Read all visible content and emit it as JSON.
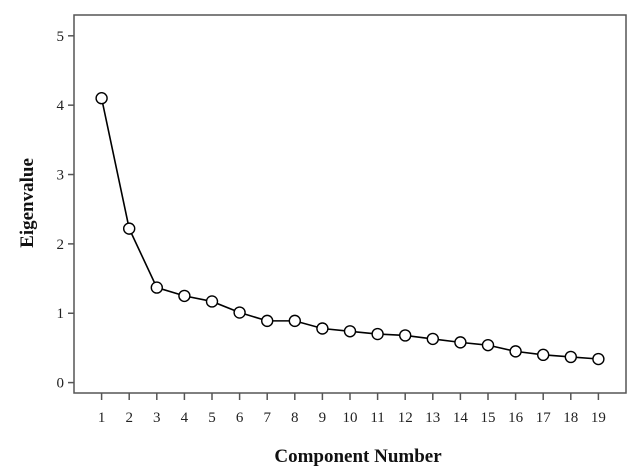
{
  "chart_data": {
    "type": "line",
    "title": "",
    "xlabel": "Component Number",
    "ylabel": "Eigenvalue",
    "x": [
      1,
      2,
      3,
      4,
      5,
      6,
      7,
      8,
      9,
      10,
      11,
      12,
      13,
      14,
      15,
      16,
      17,
      18,
      19
    ],
    "y": [
      4.1,
      2.22,
      1.37,
      1.25,
      1.17,
      1.01,
      0.89,
      0.89,
      0.78,
      0.74,
      0.7,
      0.68,
      0.63,
      0.58,
      0.54,
      0.45,
      0.4,
      0.37,
      0.34
    ],
    "ylim": [
      -0.15,
      5.3
    ],
    "xlim": [
      0,
      20
    ],
    "yticks": [
      0,
      1,
      2,
      3,
      4,
      5
    ],
    "xticks": [
      "1",
      "2",
      "3",
      "4",
      "5",
      "6",
      "7",
      "8",
      "9",
      "10",
      "11",
      "12",
      "13",
      "14",
      "15",
      "16",
      "17",
      "18",
      "19"
    ],
    "ytick_labels": [
      "0",
      "1",
      "2",
      "3",
      "4",
      "5"
    ],
    "grid": false,
    "marker": "open-circle",
    "line_color": "#000000",
    "frame_color": "#555555"
  }
}
